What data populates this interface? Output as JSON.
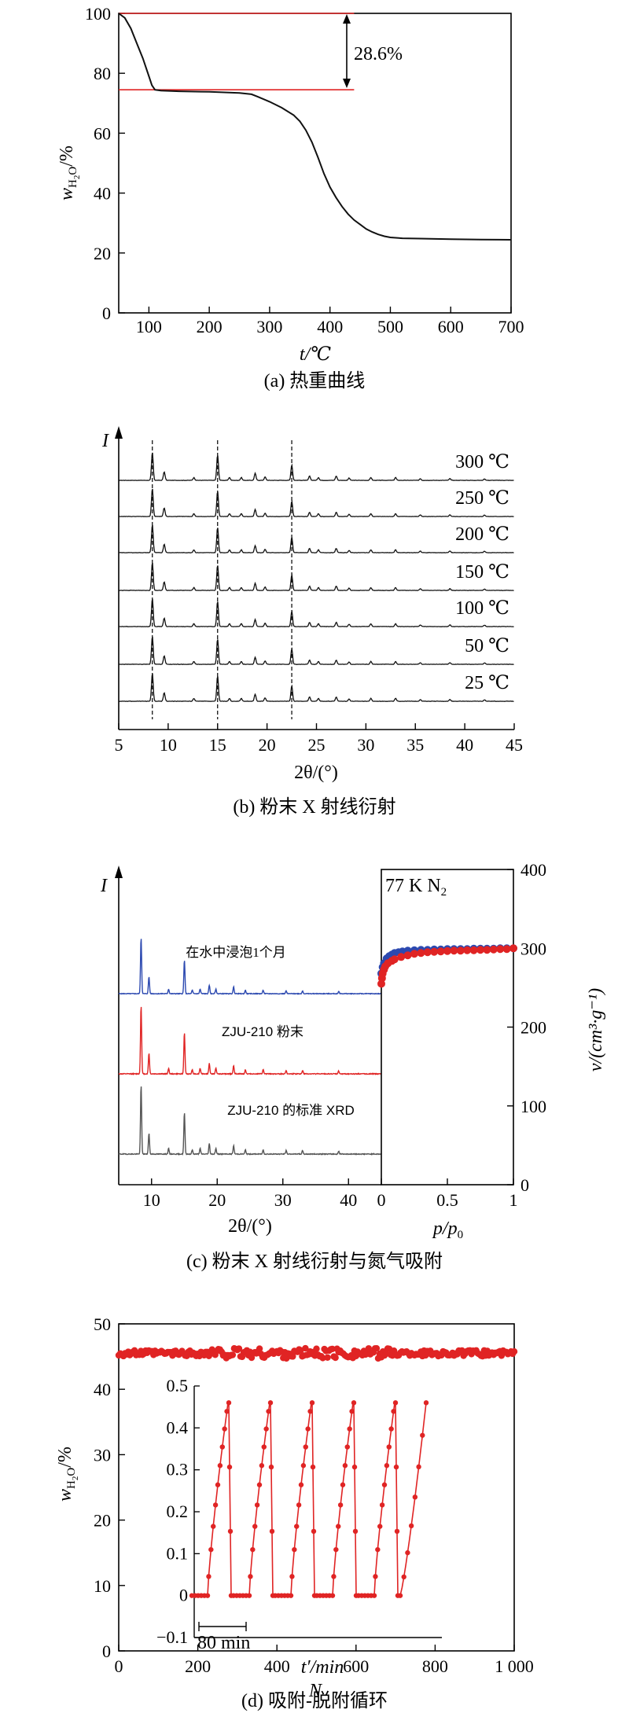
{
  "colors": {
    "black": "#111111",
    "red": "#e02424",
    "blue": "#2c49b0",
    "gray": "#555555",
    "axis": "#000000"
  },
  "chart_data": [
    {
      "id": "a",
      "type": "line",
      "caption": "(a) 热重曲线",
      "xlabel": "t/℃",
      "ylabel": "w",
      "ylabel_sub": "H",
      "ylabel_sub2": "2",
      "ylabel_sub3": "O",
      "ylabel_unit": "/%",
      "xlim": [
        50,
        700
      ],
      "ylim": [
        0,
        100
      ],
      "xticks": [
        100,
        200,
        300,
        400,
        500,
        600,
        700
      ],
      "yticks": [
        0,
        20,
        40,
        60,
        80,
        100
      ],
      "annotation": "28.6%",
      "ref_lines": [
        100,
        74.5
      ],
      "x": [
        50,
        60,
        70,
        80,
        90,
        100,
        105,
        110,
        120,
        150,
        200,
        250,
        270,
        280,
        300,
        320,
        340,
        350,
        360,
        370,
        380,
        390,
        400,
        410,
        420,
        430,
        440,
        450,
        460,
        470,
        480,
        490,
        500,
        520,
        550,
        600,
        650,
        700
      ],
      "y": [
        100,
        98.5,
        95,
        90,
        85,
        79,
        76,
        74.5,
        74.2,
        74.0,
        73.8,
        73.4,
        73.0,
        72.2,
        70.5,
        68.5,
        66,
        64,
        61,
        57,
        52,
        46.5,
        42,
        38.5,
        35.5,
        33,
        31,
        29.5,
        28,
        27,
        26.2,
        25.6,
        25.2,
        24.9,
        24.8,
        24.6,
        24.5,
        24.4
      ]
    },
    {
      "id": "b",
      "type": "line",
      "caption": "(b) 粉末 X 射线衍射",
      "xlabel": "2θ/(°)",
      "ylabel": "I",
      "xlim": [
        5,
        45
      ],
      "xticks": [
        5,
        10,
        15,
        20,
        25,
        30,
        35,
        40,
        45
      ],
      "peaks": [
        [
          8.4,
          1.0
        ],
        [
          9.6,
          0.3
        ],
        [
          12.6,
          0.1
        ],
        [
          15.0,
          0.9
        ],
        [
          16.2,
          0.1
        ],
        [
          17.4,
          0.1
        ],
        [
          18.8,
          0.25
        ],
        [
          19.8,
          0.12
        ],
        [
          22.5,
          0.55
        ],
        [
          24.3,
          0.15
        ],
        [
          25.2,
          0.1
        ],
        [
          27.0,
          0.15
        ],
        [
          28.3,
          0.08
        ],
        [
          30.5,
          0.1
        ],
        [
          33.0,
          0.1
        ],
        [
          35.5,
          0.06
        ],
        [
          38.5,
          0.06
        ],
        [
          42.0,
          0.05
        ]
      ],
      "dashed_x": [
        8.4,
        15.0,
        22.5
      ],
      "series": [
        {
          "name": "300 ℃"
        },
        {
          "name": "250 ℃"
        },
        {
          "name": "200 ℃"
        },
        {
          "name": "150 ℃"
        },
        {
          "name": "100 ℃"
        },
        {
          "name": "50 ℃"
        },
        {
          "name": "25 ℃"
        }
      ]
    },
    {
      "id": "c",
      "type": "line",
      "caption": "(c) 粉末 X 射线衍射与氮气吸附",
      "xrd": {
        "xlabel": "2θ/(°)",
        "ylabel": "I",
        "xlim": [
          5,
          45
        ],
        "xticks": [
          10,
          20,
          30,
          40
        ],
        "peaks": [
          [
            8.4,
            1.0
          ],
          [
            9.6,
            0.3
          ],
          [
            12.6,
            0.08
          ],
          [
            15.0,
            0.6
          ],
          [
            16.2,
            0.06
          ],
          [
            17.4,
            0.08
          ],
          [
            18.8,
            0.15
          ],
          [
            19.8,
            0.08
          ],
          [
            22.5,
            0.12
          ],
          [
            24.3,
            0.06
          ],
          [
            27.0,
            0.06
          ],
          [
            30.5,
            0.05
          ],
          [
            33.0,
            0.05
          ],
          [
            38.5,
            0.04
          ]
        ],
        "series": [
          {
            "name": "在水中浸泡1个月"
          },
          {
            "name": "ZJU-210 粉末"
          },
          {
            "name": "ZJU-210 的标准 XRD"
          }
        ]
      },
      "sorption": {
        "title": "77 K N",
        "title_sub": "2",
        "xlabel": "p/p",
        "xlabel_sub": "0",
        "ylabel": "v/(cm³·g⁻¹)",
        "xlim": [
          0,
          1.0
        ],
        "ylim": [
          0,
          400
        ],
        "xticks": [
          0,
          0.5,
          1.0
        ],
        "yticks": [
          0,
          100,
          200,
          300,
          400
        ],
        "adsorption_x": [
          0.0,
          0.005,
          0.01,
          0.02,
          0.03,
          0.05,
          0.08,
          0.1,
          0.15,
          0.2,
          0.25,
          0.3,
          0.35,
          0.4,
          0.45,
          0.5,
          0.55,
          0.6,
          0.65,
          0.7,
          0.75,
          0.8,
          0.85,
          0.9,
          0.95,
          1.0
        ],
        "adsorption_y": [
          255,
          262,
          268,
          273,
          277,
          281,
          284,
          286,
          289,
          291,
          293,
          294,
          295,
          295.5,
          296,
          296.5,
          297,
          297,
          297.5,
          297.5,
          298,
          298,
          298.5,
          299,
          299,
          300
        ],
        "desorption_x": [
          0.0,
          0.01,
          0.02,
          0.04,
          0.06,
          0.08,
          0.1,
          0.13,
          0.16,
          0.2,
          0.25,
          0.3,
          0.35,
          0.4,
          0.45,
          0.5,
          0.55,
          0.6,
          0.65,
          0.7,
          0.75,
          0.8,
          0.85,
          0.9,
          0.95,
          1.0
        ],
        "desorption_y": [
          268,
          276,
          281,
          287,
          290,
          292,
          294,
          295,
          296,
          297,
          297.5,
          298,
          298,
          298.5,
          298.5,
          299,
          299,
          299,
          299,
          299.5,
          299.5,
          299.5,
          299.5,
          300,
          300,
          300
        ]
      }
    },
    {
      "id": "d",
      "type": "scatter",
      "caption": "(d) 吸附-脱附循环",
      "xlabel": "N",
      "ylabel": "w",
      "ylabel_sub": "H",
      "ylabel_sub2": "2",
      "ylabel_sub3": "O",
      "ylabel_unit": "/%",
      "xlim": [
        0,
        1000
      ],
      "ylim": [
        0,
        50
      ],
      "xticks": [
        0,
        200,
        400,
        600,
        800,
        1000
      ],
      "xtick_labels": [
        "0",
        "200",
        "400",
        "600",
        "800",
        "1 000"
      ],
      "yticks": [
        0,
        10,
        20,
        30,
        40,
        50
      ],
      "mean": 45.5,
      "inset": {
        "xlabel": "t′/min",
        "scale_label": "80 min",
        "ylim": [
          -0.1,
          0.5
        ],
        "yticks": [
          -0.1,
          0,
          0.1,
          0.2,
          0.3,
          0.4,
          0.5
        ],
        "ytick_labels": [
          "−0.1",
          "0",
          "0.1",
          "0.2",
          "0.3",
          "0.4",
          "0.5"
        ],
        "cycles": 5,
        "peak": 0.46
      }
    }
  ]
}
